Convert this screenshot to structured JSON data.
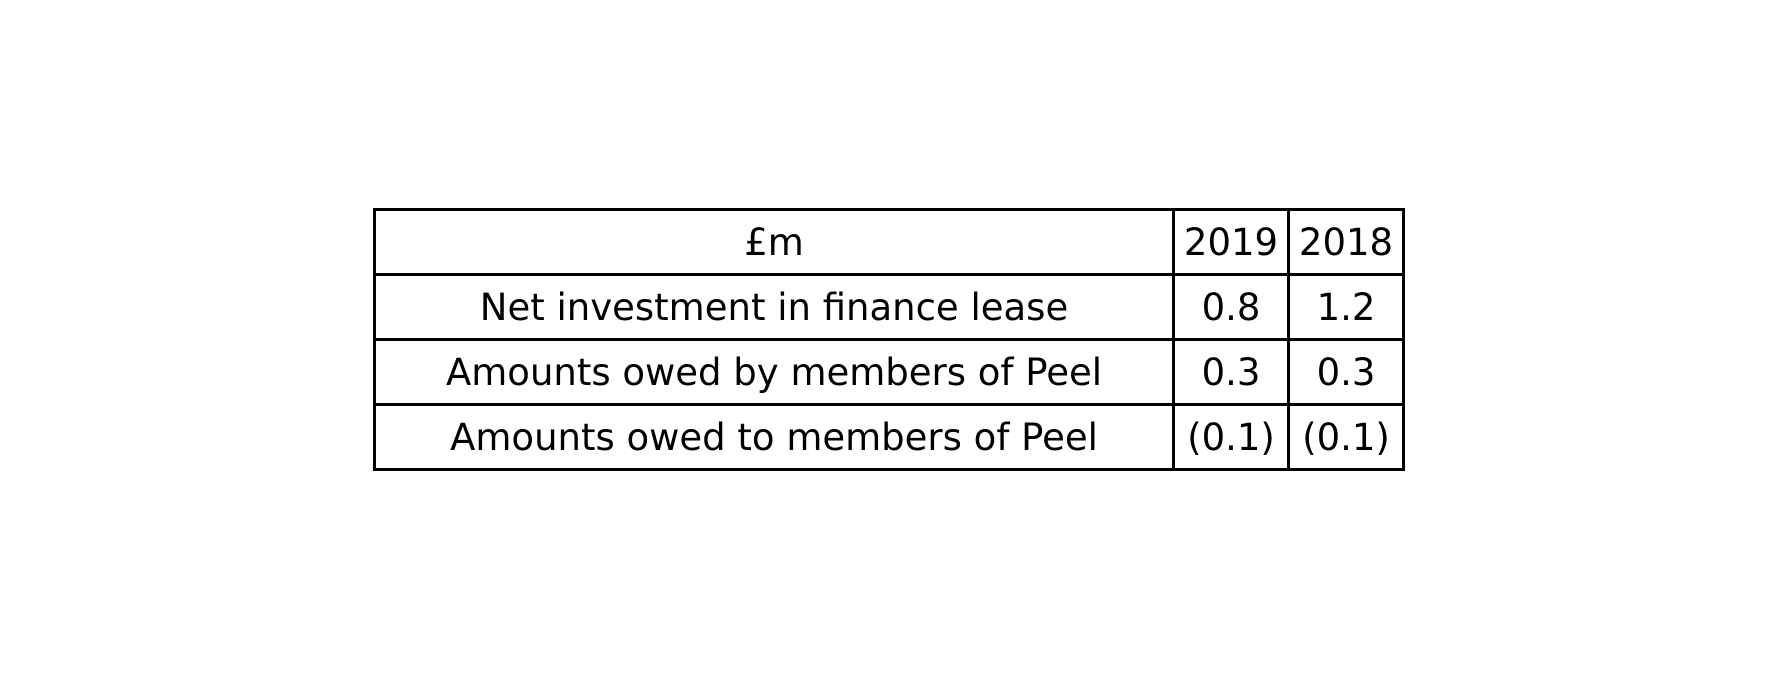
{
  "chart_data": {
    "type": "table",
    "columns": [
      "£m",
      "2019",
      "2018"
    ],
    "rows": [
      [
        "Net investment in finance lease",
        "0.8",
        "1.2"
      ],
      [
        "Amounts owed by members of Peel",
        "0.3",
        "0.3"
      ],
      [
        "Amounts owed to members of Peel",
        "(0.1)",
        "(0.1)"
      ]
    ]
  }
}
